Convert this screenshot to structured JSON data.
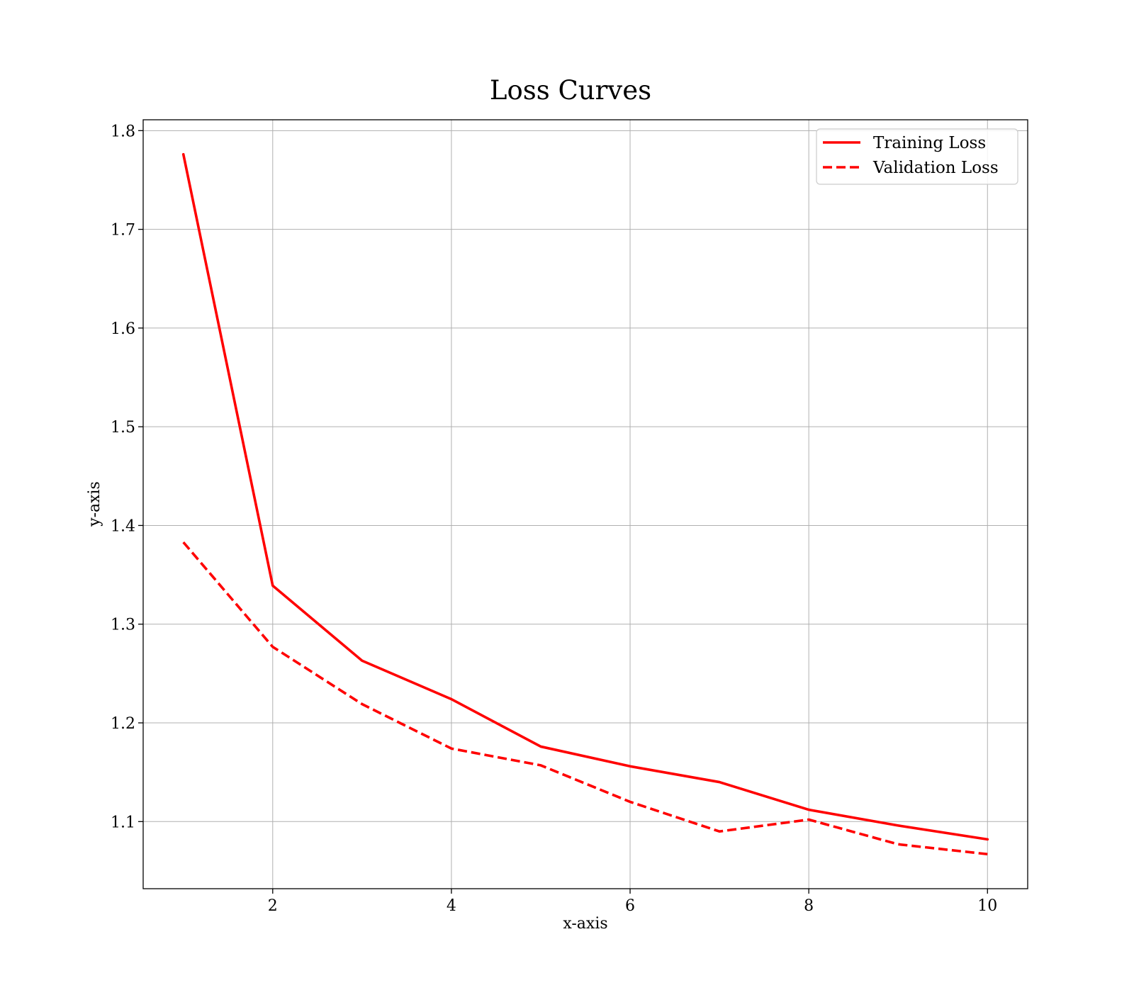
{
  "chart_data": {
    "type": "line",
    "title": "Loss Curves",
    "xlabel": "x-axis",
    "ylabel": "y-axis",
    "xlim": [
      0.55,
      10.45
    ],
    "ylim": [
      1.032,
      1.811
    ],
    "xticks": [
      2,
      4,
      6,
      8,
      10
    ],
    "yticks": [
      1.1,
      1.2,
      1.3,
      1.4,
      1.5,
      1.6,
      1.7,
      1.8
    ],
    "grid": true,
    "legend_position": "top-right",
    "x": [
      1,
      2,
      3,
      4,
      5,
      6,
      7,
      8,
      9,
      10
    ],
    "series": [
      {
        "name": "Training Loss",
        "style": "solid",
        "color": "#ff0000",
        "values": [
          1.776,
          1.339,
          1.263,
          1.224,
          1.176,
          1.156,
          1.14,
          1.112,
          1.096,
          1.082
        ]
      },
      {
        "name": "Validation Loss",
        "style": "dashed",
        "color": "#ff0000",
        "values": [
          1.383,
          1.277,
          1.219,
          1.174,
          1.157,
          1.12,
          1.09,
          1.102,
          1.077,
          1.067
        ]
      }
    ]
  }
}
